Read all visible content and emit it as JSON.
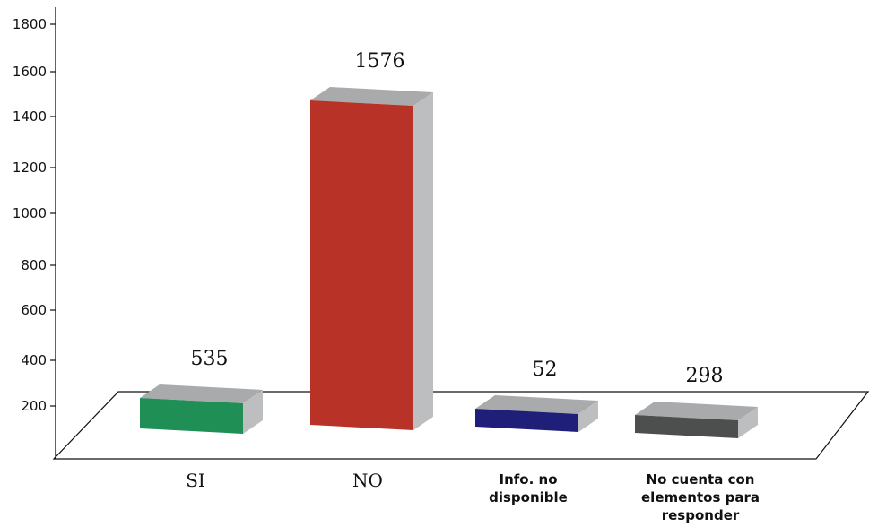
{
  "chart_data": {
    "type": "bar",
    "categories": [
      "SI",
      "NO",
      "Info. no disponible",
      "No cuenta con elementos para responder"
    ],
    "values": [
      535,
      1576,
      52,
      298
    ],
    "data_labels": [
      "535",
      "1576",
      "52",
      "298"
    ],
    "y_ticks": [
      "200",
      "400",
      "600",
      "800",
      "1000",
      "1200",
      "1400",
      "1600",
      "1800"
    ],
    "ylim": [
      0,
      1800
    ],
    "grid": false,
    "legend": "none",
    "style": "3d",
    "colors": [
      "#1f8f55",
      "#b83227",
      "#1f1f7a",
      "#4d4f4e"
    ],
    "side_color": "#bdbec0",
    "top_color": "#a9aaac"
  }
}
